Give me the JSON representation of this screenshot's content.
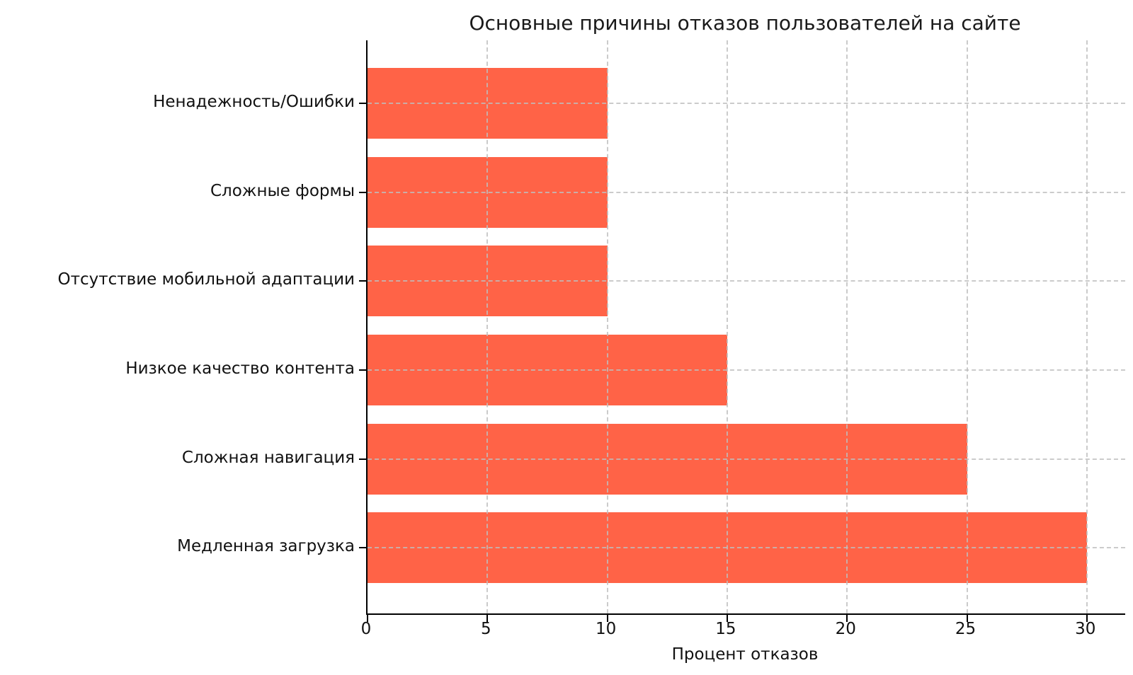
{
  "figure": {
    "background": "#ffffff"
  },
  "chart_data": {
    "type": "bar",
    "orientation": "horizontal",
    "title": "Основные причины отказов пользователей на сайте",
    "xlabel": "Процент отказов",
    "ylabel": "",
    "categories": [
      "Ненадежность/Ошибки",
      "Сложные формы",
      "Отсутствие мобильной адаптации",
      "Низкое качество контента",
      "Сложная навигация",
      "Медленная загрузка"
    ],
    "values": [
      10,
      10,
      10,
      15,
      25,
      30
    ],
    "xlim": [
      0,
      31.6
    ],
    "xticks": [
      0,
      5,
      10,
      15,
      20,
      25,
      30
    ],
    "bar_color": "#FF6347",
    "axis_color": "#000000",
    "grid": {
      "show": true,
      "color": "#c8c8c8",
      "style": "dashed",
      "on_top_of_bars": true
    },
    "legend": null
  }
}
